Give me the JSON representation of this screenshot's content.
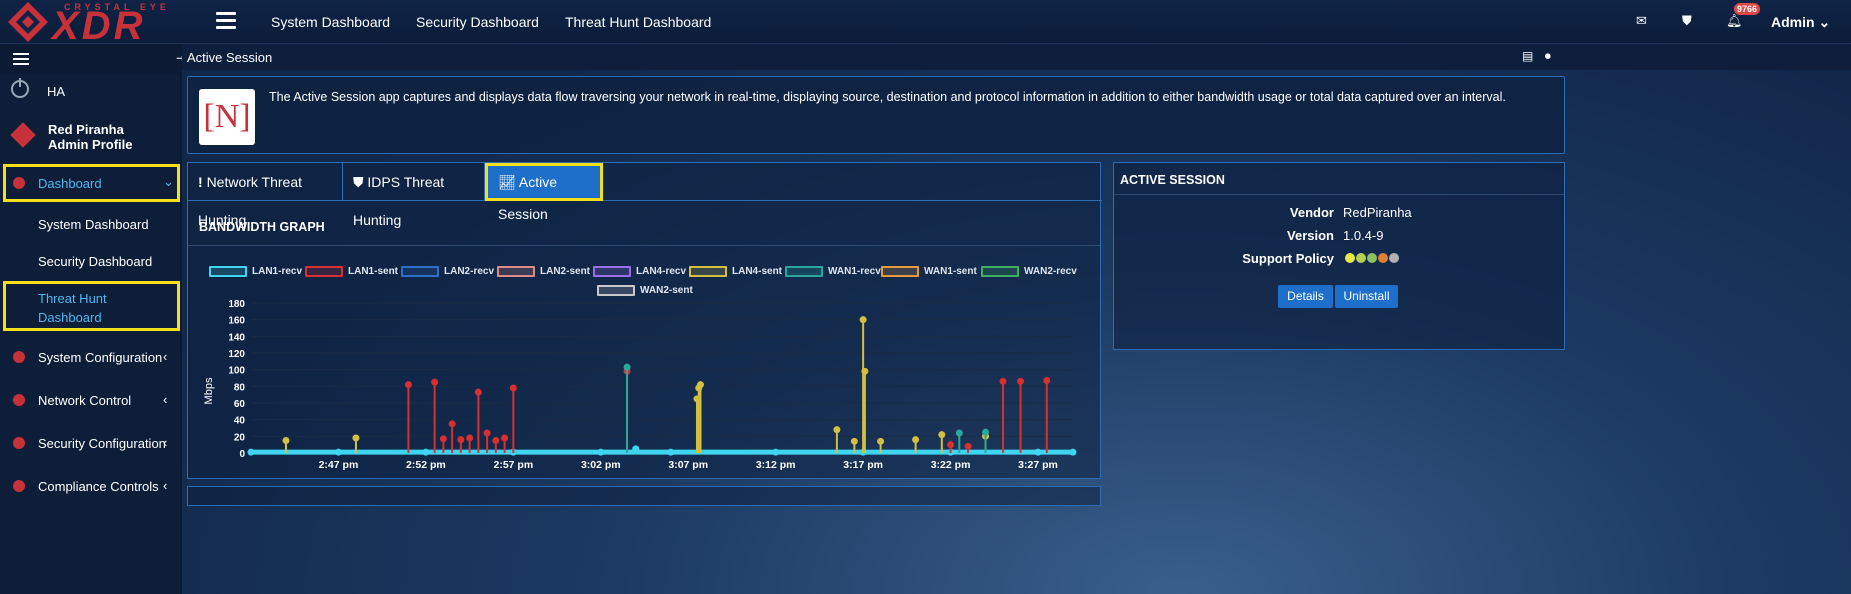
{
  "brand": {
    "top": "CRYSTAL EYE",
    "big": "XDR",
    "color": "#c7313a"
  },
  "topnav": [
    "System Dashboard",
    "Security Dashboard",
    "Threat Hunt Dashboard"
  ],
  "topbar": {
    "notifications": "9766",
    "user": "Admin"
  },
  "sidebar": {
    "ha": "HA",
    "profile_name": "Red Piranha",
    "profile_role": "Admin Profile",
    "dashboard": "Dashboard",
    "sub_items": [
      "System Dashboard",
      "Security Dashboard",
      "Threat Hunt",
      "Dashboard"
    ],
    "items": [
      "System Configuration",
      "Network Control",
      "Security Configuration",
      "Compliance Controls"
    ]
  },
  "page": {
    "title": "Active Session",
    "logo_text": "[N]",
    "description": "The Active Session app captures and displays data flow traversing your network in real-time, displaying source, destination and protocol information in addition to either bandwidth usage or total data captured over an interval."
  },
  "tabs": [
    "Network Threat Hunting",
    "IDPS Threat Hunting",
    "Active Session"
  ],
  "tab_icons": [
    "!",
    "shield",
    "chart"
  ],
  "active_tab_color": "#1d6fc9",
  "highlight_color": "#f4e01a",
  "chart_data": {
    "type": "line",
    "title": "BANDWIDTH GRAPH",
    "ylabel": "Mbps",
    "xlabel": "",
    "ylim": [
      0,
      180
    ],
    "yticks": [
      0,
      20,
      40,
      60,
      80,
      100,
      120,
      140,
      160,
      180
    ],
    "x_ticks": [
      "2:47 pm",
      "2:52 pm",
      "2:57 pm",
      "3:02 pm",
      "3:07 pm",
      "3:12 pm",
      "3:17 pm",
      "3:22 pm",
      "3:27 pm"
    ],
    "x_range_minutes": [
      0,
      47
    ],
    "grid": true,
    "legend_position": "top",
    "series": [
      {
        "name": "LAN1-recv",
        "color": "#3fd5f0",
        "values": [
          [
            0,
            1
          ],
          [
            5,
            1
          ],
          [
            10,
            1
          ],
          [
            15,
            1
          ],
          [
            20,
            1
          ],
          [
            22,
            5
          ],
          [
            24,
            1
          ],
          [
            30,
            1
          ],
          [
            35,
            1
          ],
          [
            40,
            1
          ],
          [
            45,
            1
          ],
          [
            47,
            1
          ]
        ]
      },
      {
        "name": "LAN1-sent",
        "color": "#d83030",
        "values": [
          [
            9,
            82
          ],
          [
            10.5,
            85
          ],
          [
            11,
            17
          ],
          [
            11.5,
            35
          ],
          [
            12,
            16
          ],
          [
            12.5,
            18
          ],
          [
            13,
            73
          ],
          [
            13.5,
            24
          ],
          [
            14,
            15
          ],
          [
            14.5,
            18
          ],
          [
            15,
            78
          ],
          [
            21.5,
            98
          ],
          [
            43,
            86
          ],
          [
            44,
            86
          ],
          [
            45.5,
            87
          ],
          [
            40,
            10
          ],
          [
            41,
            8
          ]
        ]
      },
      {
        "name": "LAN2-recv",
        "color": "#2e6fc9",
        "values": []
      },
      {
        "name": "LAN2-sent",
        "color": "#e08a8a",
        "values": []
      },
      {
        "name": "LAN4-recv",
        "color": "#9a6fe8",
        "values": []
      },
      {
        "name": "LAN4-sent",
        "color": "#d4c040",
        "values": [
          [
            2,
            15
          ],
          [
            6,
            18
          ],
          [
            25.5,
            65
          ],
          [
            25.6,
            78
          ],
          [
            25.7,
            82
          ],
          [
            33.5,
            28
          ],
          [
            34.5,
            14
          ],
          [
            35,
            160
          ],
          [
            35.1,
            98
          ],
          [
            36,
            14
          ],
          [
            38,
            16
          ],
          [
            39.5,
            22
          ],
          [
            42,
            20
          ]
        ]
      },
      {
        "name": "WAN1-recv",
        "color": "#2aa8a0",
        "values": [
          [
            21.5,
            103
          ],
          [
            40.5,
            24
          ],
          [
            42,
            25
          ]
        ]
      },
      {
        "name": "WAN1-sent",
        "color": "#e89a3a",
        "values": []
      },
      {
        "name": "WAN2-recv",
        "color": "#3fb060",
        "values": []
      },
      {
        "name": "WAN2-sent",
        "color": "#c8c8c8",
        "values": []
      }
    ]
  },
  "right_panel": {
    "title": "ACTIVE SESSION",
    "vendor_label": "Vendor",
    "vendor": "RedPiranha",
    "version_label": "Version",
    "version": "1.0.4-9",
    "policy_label": "Support Policy",
    "policy_colors": [
      "#e8e848",
      "#b4d050",
      "#8cc060",
      "#e08030",
      "#b0b0b0"
    ],
    "buttons": [
      "Details",
      "Uninstall"
    ]
  }
}
